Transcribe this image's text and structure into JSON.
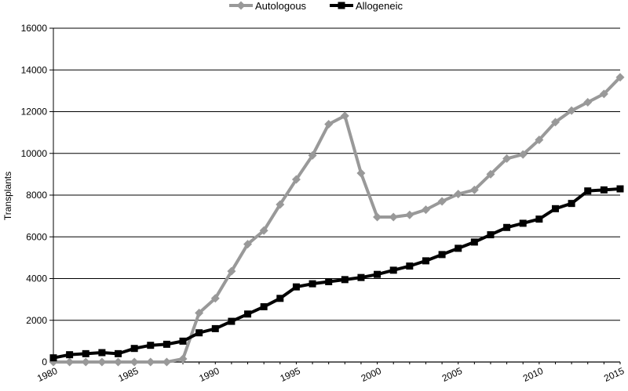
{
  "chart_data": {
    "type": "line",
    "title": "",
    "xlabel": "",
    "ylabel": "Transplants",
    "ylim": [
      0,
      16000
    ],
    "yticks": [
      0,
      2000,
      4000,
      6000,
      8000,
      10000,
      12000,
      14000,
      16000
    ],
    "xlim": [
      1980,
      2015
    ],
    "xticks": [
      1980,
      1985,
      1990,
      1995,
      2000,
      2005,
      2010,
      2015
    ],
    "grid": "horizontal",
    "legend_position": "top",
    "x": [
      1980,
      1981,
      1982,
      1983,
      1984,
      1985,
      1986,
      1987,
      1988,
      1989,
      1990,
      1991,
      1992,
      1993,
      1994,
      1995,
      1996,
      1997,
      1998,
      1999,
      2000,
      2001,
      2002,
      2003,
      2004,
      2005,
      2006,
      2007,
      2008,
      2009,
      2010,
      2011,
      2012,
      2013,
      2014,
      2015
    ],
    "series": [
      {
        "name": "Autologous",
        "color": "#999999",
        "marker": "diamond",
        "values": [
          0,
          0,
          0,
          0,
          0,
          0,
          0,
          0,
          150,
          2350,
          3050,
          4350,
          5650,
          6300,
          7550,
          8750,
          9900,
          11400,
          11800,
          9050,
          6950,
          6950,
          7050,
          7300,
          7700,
          8050,
          8250,
          9000,
          9750,
          9950,
          10650,
          11500,
          12050,
          12450,
          12850,
          13650
        ]
      },
      {
        "name": "Allogeneic",
        "color": "#000000",
        "marker": "square",
        "values": [
          200,
          350,
          400,
          450,
          400,
          650,
          800,
          850,
          1000,
          1400,
          1600,
          1950,
          2300,
          2650,
          3050,
          3600,
          3750,
          3850,
          3950,
          4050,
          4200,
          4400,
          4600,
          4850,
          5150,
          5450,
          5750,
          6100,
          6450,
          6650,
          6850,
          7350,
          7600,
          8200,
          8250,
          8300
        ]
      }
    ]
  }
}
